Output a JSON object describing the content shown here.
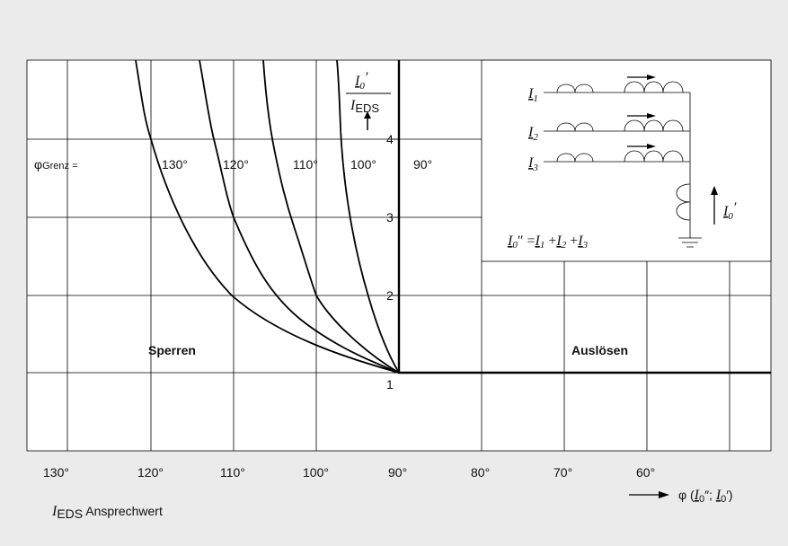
{
  "diagram": {
    "curve_labels": {
      "prefix": "φ",
      "prefix_sub": "Grenz",
      "equals": " =",
      "labels": [
        "130°",
        "120°",
        "110°",
        "100°",
        "90°"
      ]
    },
    "y_axis": {
      "ticks": [
        "4",
        "3",
        "2",
        "1"
      ],
      "num": "I",
      "num_sub": "0",
      "num_prime": "′",
      "den": "I",
      "den_sub": "EDS"
    },
    "regions": [
      "Sperren",
      "Auslösen"
    ],
    "x_axis": {
      "ticks": [
        "130°",
        "120°",
        "110°",
        "100°",
        "90°",
        "80°",
        "70°",
        "60°"
      ],
      "label": {
        "phi": "φ (",
        "a": "I",
        "a_sub": "0",
        "a_prime": "″; ",
        "b": "I",
        "b_sub": "0",
        "b_prime": "′)"
      }
    },
    "footnote": {
      "sym": "I",
      "sub": "EDS",
      "text": " Ansprechwert"
    },
    "inset": {
      "currents": [
        {
          "sym": "I",
          "sub": "1"
        },
        {
          "sym": "I",
          "sub": "2"
        },
        {
          "sym": "I",
          "sub": "3"
        }
      ],
      "residual": {
        "sym": "I",
        "sub": "0",
        "prime": "′"
      },
      "equation": {
        "lhs": "I",
        "lhs_sub": "0",
        "lhs_prime": "″ =",
        "t1": "I",
        "t1_sub": "1",
        "plus1": " +",
        "t2": "I",
        "t2_sub": "2",
        "plus2": " +",
        "t3": "I",
        "t3_sub": "3"
      }
    }
  }
}
